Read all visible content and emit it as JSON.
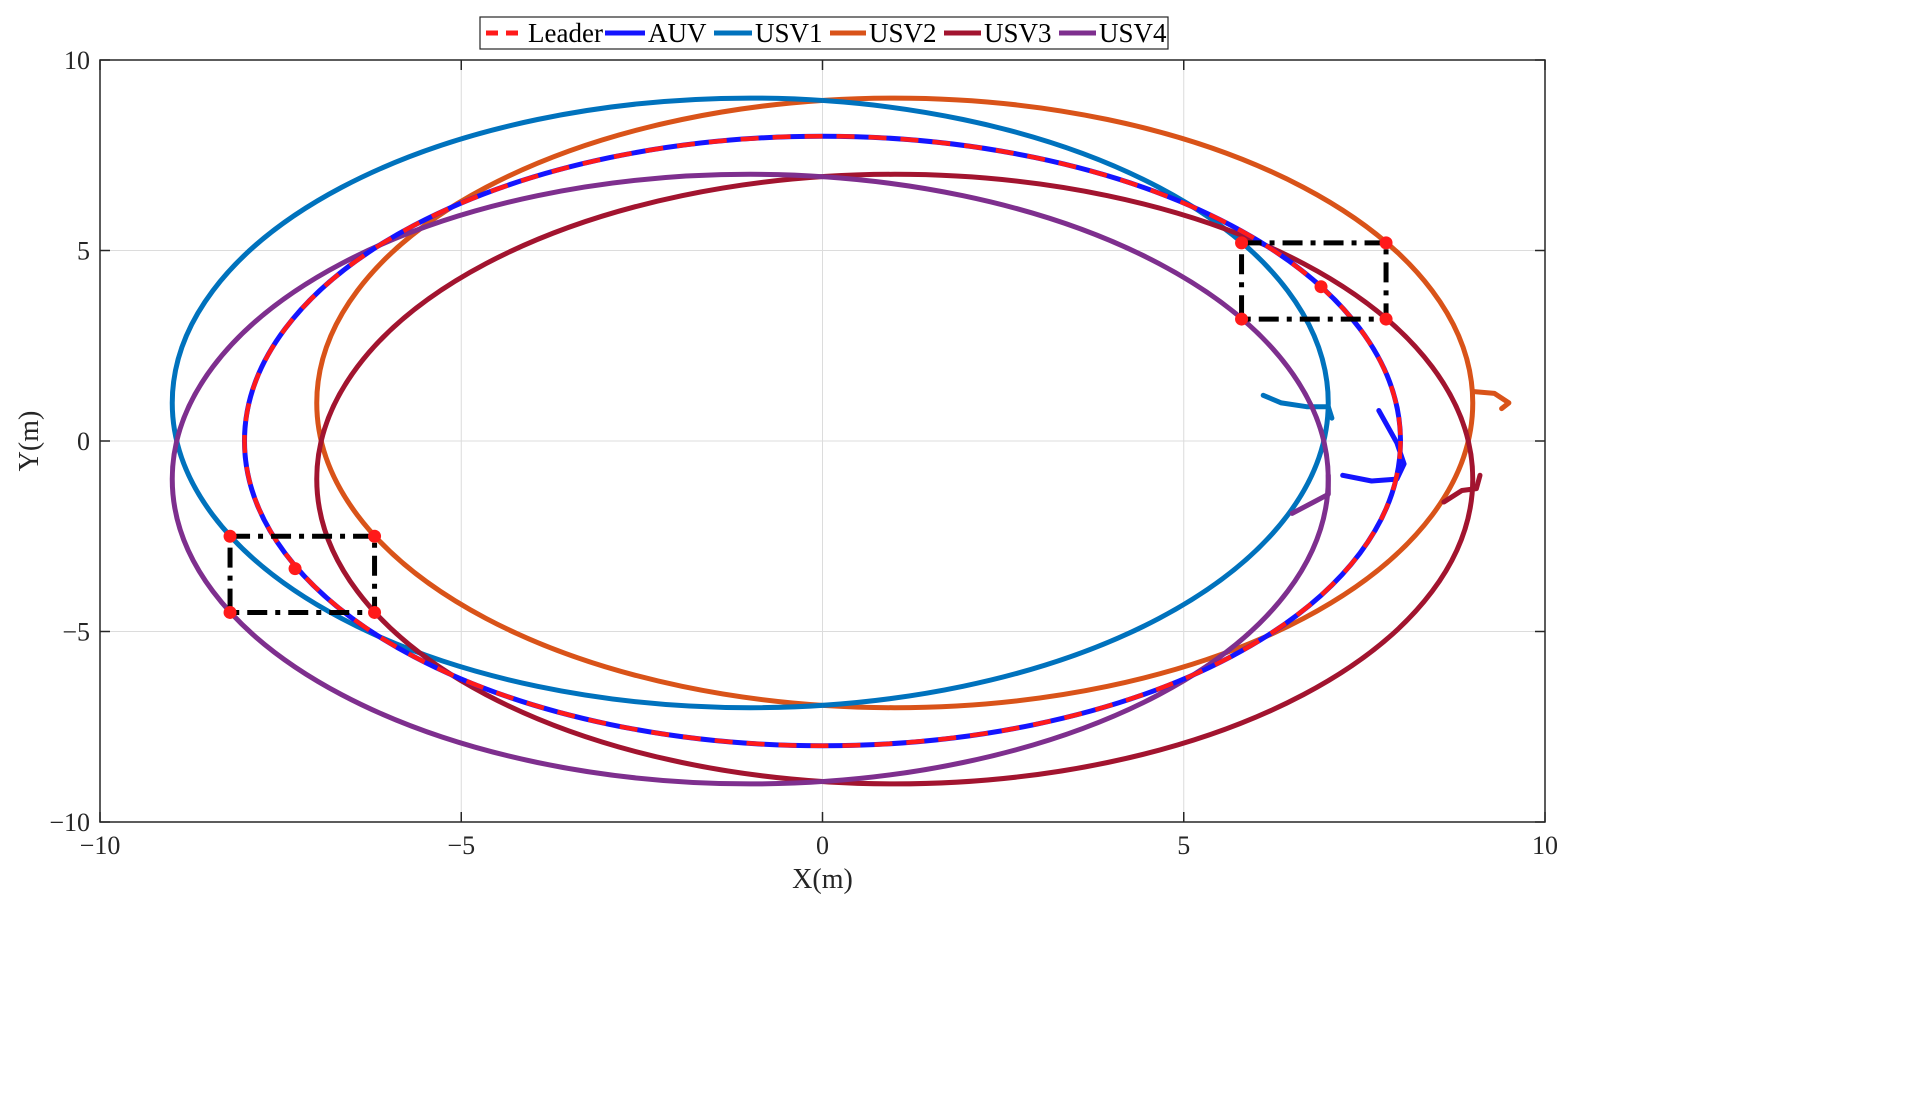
{
  "chart_data": {
    "type": "line",
    "title": "",
    "xlabel": "X(m)",
    "ylabel": "Y(m)",
    "xlim": [
      -10,
      10
    ],
    "ylim": [
      -10,
      10
    ],
    "grid": true,
    "legend_position": "top-center",
    "xticks": [
      -10,
      -5,
      0,
      5,
      10
    ],
    "yticks": [
      -10,
      -5,
      0,
      5,
      10
    ],
    "xtick_labels": [
      "−10",
      "−5",
      "0",
      "5",
      "10"
    ],
    "ytick_labels": [
      "−10",
      "−5",
      "0",
      "5",
      "10"
    ],
    "series": [
      {
        "name": "Leader",
        "color": "#ff1a1a",
        "style": "dashed",
        "shape": "ellipse",
        "center": [
          0,
          0
        ],
        "rx": 8,
        "ry": 8
      },
      {
        "name": "AUV",
        "color": "#1414ff",
        "style": "solid",
        "shape": "ellipse",
        "center": [
          0,
          0
        ],
        "rx": 8,
        "ry": 8,
        "start_segment": [
          [
            7.2,
            -0.9
          ],
          [
            7.6,
            -1.05
          ],
          [
            7.95,
            -1.0
          ],
          [
            8.05,
            -0.6
          ],
          [
            7.95,
            -0.05
          ],
          [
            7.7,
            0.8
          ]
        ]
      },
      {
        "name": "USV1",
        "color": "#0072bd",
        "style": "solid",
        "shape": "ellipse",
        "center": [
          -1,
          1
        ],
        "rx": 8,
        "ry": 8,
        "start_segment": [
          [
            6.1,
            1.2
          ],
          [
            6.35,
            1.0
          ],
          [
            6.7,
            0.9
          ],
          [
            7.0,
            0.9
          ],
          [
            7.05,
            0.6
          ]
        ]
      },
      {
        "name": "USV2",
        "color": "#d95319",
        "style": "solid",
        "shape": "ellipse",
        "center": [
          1,
          1
        ],
        "rx": 8,
        "ry": 8,
        "start_segment": [
          [
            9.0,
            1.3
          ],
          [
            9.3,
            1.25
          ],
          [
            9.5,
            1.0
          ],
          [
            9.4,
            0.85
          ]
        ]
      },
      {
        "name": "USV3",
        "color": "#a2142f",
        "style": "solid",
        "shape": "ellipse",
        "center": [
          1,
          -1
        ],
        "rx": 8,
        "ry": 8,
        "start_segment": [
          [
            8.6,
            -1.6
          ],
          [
            8.85,
            -1.3
          ],
          [
            9.05,
            -1.25
          ],
          [
            9.1,
            -0.9
          ]
        ]
      },
      {
        "name": "USV4",
        "color": "#7e2f8e",
        "style": "solid",
        "shape": "ellipse",
        "center": [
          -1,
          -1
        ],
        "rx": 8,
        "ry": 8,
        "start_segment": [
          [
            6.5,
            -1.9
          ],
          [
            6.8,
            -1.6
          ],
          [
            7.0,
            -1.4
          ],
          [
            7.0,
            -0.9
          ]
        ]
      }
    ],
    "annotations": [
      {
        "type": "dash-dot-rectangle",
        "x1": 5.8,
        "x2": 7.8,
        "y1": 3.2,
        "y2": 5.2,
        "markers": [
          [
            5.8,
            5.2
          ],
          [
            7.8,
            5.2
          ],
          [
            5.8,
            3.2
          ],
          [
            7.8,
            3.2
          ],
          [
            6.9,
            4.05
          ]
        ]
      },
      {
        "type": "dash-dot-rectangle",
        "x1": -8.2,
        "x2": -6.2,
        "y1": -4.5,
        "y2": -2.5,
        "markers": [
          [
            -8.2,
            -2.5
          ],
          [
            -6.2,
            -2.5
          ],
          [
            -8.2,
            -4.5
          ],
          [
            -6.2,
            -4.5
          ],
          [
            -7.3,
            -3.35
          ]
        ]
      }
    ]
  }
}
